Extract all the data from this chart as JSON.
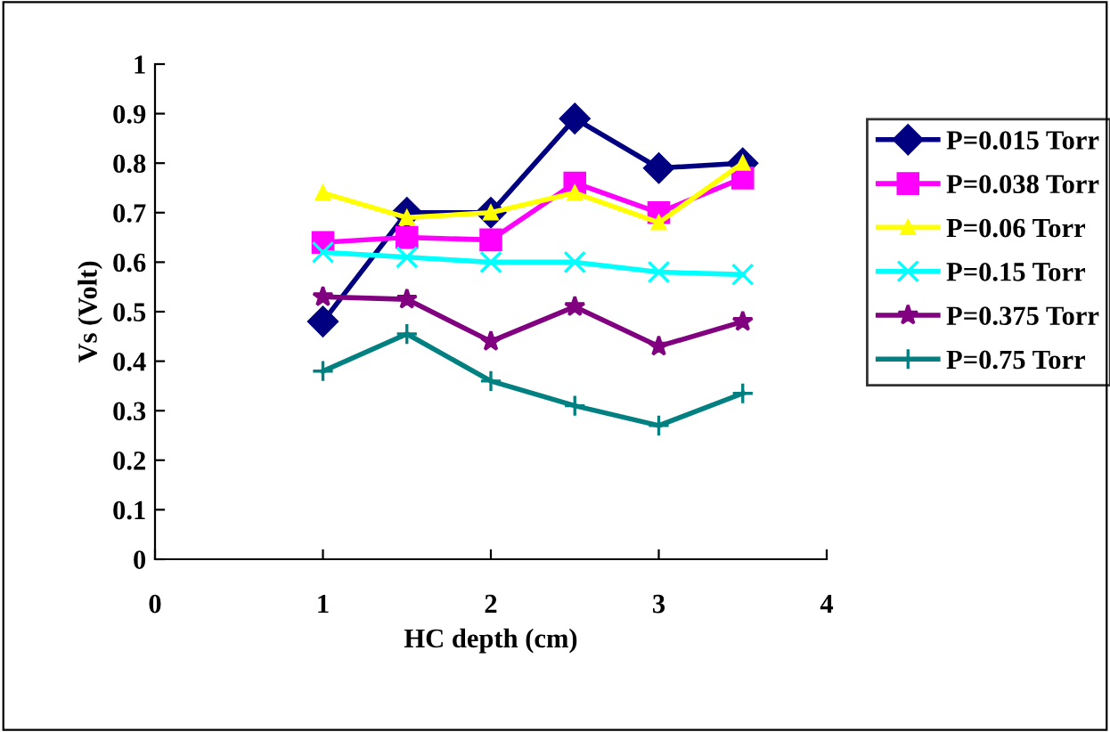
{
  "chart_data": {
    "type": "line",
    "xlabel": "HC depth (cm)",
    "ylabel": "Vs (Volt)",
    "x": [
      1,
      1.5,
      2,
      2.5,
      3,
      3.5
    ],
    "xlim": [
      0,
      4
    ],
    "xticks": [
      0,
      1,
      2,
      3,
      4
    ],
    "ylim": [
      0,
      1
    ],
    "yticks": [
      0,
      0.1,
      0.2,
      0.3,
      0.4,
      0.5,
      0.6,
      0.7,
      0.8,
      0.9,
      1
    ],
    "grid": false,
    "legend": "right",
    "line_style": "solid",
    "series": [
      {
        "name": "P=0.015 Torr",
        "color": "#000080",
        "marker": "diamond",
        "values": [
          0.48,
          0.7,
          0.7,
          0.89,
          0.79,
          0.8
        ]
      },
      {
        "name": "P=0.038 Torr",
        "color": "#ff00ff",
        "marker": "square",
        "values": [
          0.64,
          0.65,
          0.645,
          0.76,
          0.7,
          0.77
        ]
      },
      {
        "name": "P=0.06 Torr",
        "color": "#ffff00",
        "marker": "triangle",
        "values": [
          0.74,
          0.69,
          0.7,
          0.74,
          0.68,
          0.8
        ]
      },
      {
        "name": "P=0.15 Torr",
        "color": "#00ffff",
        "marker": "cross",
        "values": [
          0.62,
          0.61,
          0.6,
          0.6,
          0.58,
          0.575
        ]
      },
      {
        "name": "P=0.375 Torr",
        "color": "#800080",
        "marker": "star",
        "values": [
          0.53,
          0.525,
          0.44,
          0.51,
          0.43,
          0.48
        ]
      },
      {
        "name": "P=0.75 Torr",
        "color": "#008080",
        "marker": "plus",
        "values": [
          0.38,
          0.455,
          0.36,
          0.31,
          0.27,
          0.335
        ]
      }
    ]
  }
}
